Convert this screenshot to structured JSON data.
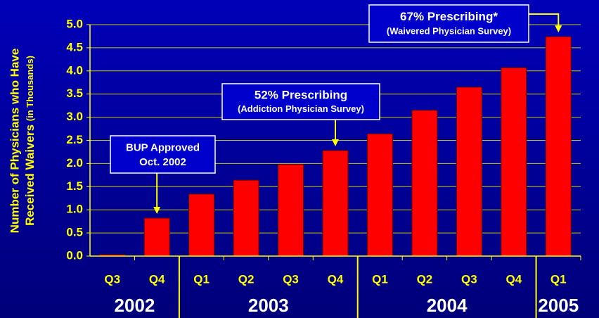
{
  "chart_data": {
    "type": "bar",
    "ylabel": {
      "line1": "Number of Physicians who Have",
      "line2": "Received Waivers",
      "line2_note": "(in Thousands)"
    },
    "groups": [
      {
        "name": "2002",
        "categories": [
          "Q3",
          "Q4"
        ],
        "values": [
          0.03,
          0.82
        ]
      },
      {
        "name": "2003",
        "categories": [
          "Q1",
          "Q2",
          "Q3",
          "Q4"
        ],
        "values": [
          1.34,
          1.64,
          1.98,
          2.28
        ]
      },
      {
        "name": "2004",
        "categories": [
          "Q1",
          "Q2",
          "Q3",
          "Q4"
        ],
        "values": [
          2.64,
          3.15,
          3.65,
          4.07
        ]
      },
      {
        "name": "2005",
        "categories": [
          "Q1"
        ],
        "values": [
          4.74
        ]
      }
    ],
    "color": "#ff0000",
    "ylim": [
      0,
      5
    ],
    "yticks": [
      {
        "value": 0,
        "label": "0.0"
      },
      0.5,
      {
        "value": 1,
        "label": "1.0"
      },
      1.5,
      {
        "value": 2,
        "label": "2.0"
      },
      2.5,
      {
        "value": 3,
        "label": "3.0"
      },
      3.5,
      {
        "value": 4,
        "label": "4.0"
      },
      4.5,
      {
        "value": 5,
        "label": "5.0"
      }
    ],
    "grid": true,
    "annotations": [
      {
        "title": "BUP Approved",
        "subtitle": "Oct. 2002"
      },
      {
        "title": "52% Prescribing",
        "subtitle": "(Addiction Physician Survey)"
      },
      {
        "title": "67% Prescribing*",
        "subtitle": "(Waivered Physician Survey)"
      }
    ]
  }
}
